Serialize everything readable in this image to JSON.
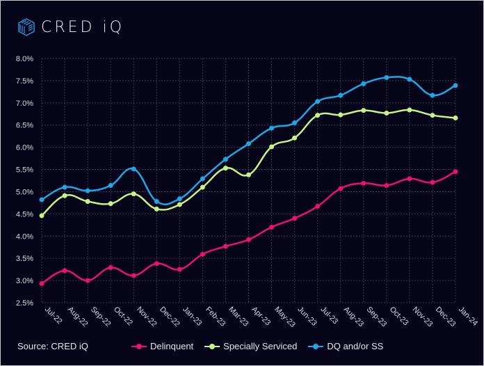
{
  "brand": {
    "name": "CRED iQ"
  },
  "source": "Source:   CRED iQ",
  "chart_data": {
    "type": "line",
    "title": "",
    "xlabel": "",
    "ylabel": "",
    "ylim": [
      2.5,
      8.0
    ],
    "yticks": [
      "2.5%",
      "3.0%",
      "3.5%",
      "4.0%",
      "4.5%",
      "5.0%",
      "5.5%",
      "6.0%",
      "6.5%",
      "7.0%",
      "7.5%",
      "8.0%"
    ],
    "ytick_values": [
      2.5,
      3.0,
      3.5,
      4.0,
      4.5,
      5.0,
      5.5,
      6.0,
      6.5,
      7.0,
      7.5,
      8.0
    ],
    "grid": true,
    "legend_position": "bottom",
    "categories": [
      "Jul-22",
      "Aug-22",
      "Sep-22",
      "Oct-22",
      "Nov-22",
      "Dec-22",
      "Jan-23",
      "Feb-23",
      "Mar-23",
      "Apr-23",
      "May-23",
      "Jun-23",
      "Jul-23",
      "Aug-23",
      "Sep-23",
      "Oct-23",
      "Nov-23",
      "Dec-23",
      "Jan-24"
    ],
    "series": [
      {
        "name": "Delinquent",
        "color": "#e8136e",
        "values": [
          2.93,
          3.22,
          3.0,
          3.29,
          3.11,
          3.38,
          3.25,
          3.59,
          3.77,
          3.92,
          4.2,
          4.4,
          4.67,
          5.07,
          5.19,
          5.14,
          5.29,
          5.21,
          5.45
        ]
      },
      {
        "name": "Specially Serviced",
        "color": "#c6f28a",
        "values": [
          4.46,
          4.91,
          4.78,
          4.73,
          4.95,
          4.61,
          4.71,
          5.1,
          5.53,
          5.38,
          6.01,
          6.21,
          6.72,
          6.73,
          6.83,
          6.77,
          6.84,
          6.72,
          6.66
        ]
      },
      {
        "name": "DQ and/or SS",
        "color": "#1ea7e4",
        "values": [
          4.82,
          5.1,
          5.02,
          5.14,
          5.51,
          4.78,
          4.84,
          5.29,
          5.73,
          6.08,
          6.43,
          6.55,
          7.03,
          7.17,
          7.43,
          7.57,
          7.53,
          7.17,
          7.39
        ]
      }
    ]
  }
}
